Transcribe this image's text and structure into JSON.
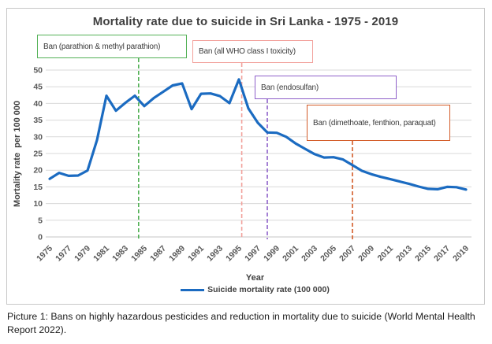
{
  "page": {
    "caption": "Picture 1: Bans on highly hazardous pesticides and reduction in mortality due to suicide (World Mental Health Report 2022)."
  },
  "colors": {
    "series_blue": "#1b6bc1",
    "ban_green": "#53b156",
    "ban_pink": "#f2a09b",
    "ban_purple": "#8e60c9",
    "ban_orange": "#d35b28",
    "grid": "#d9d9d9",
    "axis_text": "#595959",
    "title_text": "#3f3f3f"
  },
  "chart_data": {
    "type": "line",
    "title": "Mortality rate due to suicide in Sri Lanka - 1975 - 2019",
    "xlabel": "Year",
    "ylabel": "Mortality rate  per 100 000",
    "x": [
      1975,
      1976,
      1977,
      1978,
      1979,
      1980,
      1981,
      1982,
      1983,
      1984,
      1985,
      1986,
      1987,
      1988,
      1989,
      1990,
      1991,
      1992,
      1993,
      1994,
      1995,
      1996,
      1997,
      1998,
      1999,
      2000,
      2001,
      2002,
      2003,
      2004,
      2005,
      2006,
      2007,
      2008,
      2009,
      2010,
      2011,
      2012,
      2013,
      2014,
      2015,
      2016,
      2017,
      2018,
      2019
    ],
    "series": [
      {
        "name": "Suicide mortality rate (100 000)",
        "color": "#1b6bc1",
        "values": [
          17.4,
          19.2,
          18.3,
          18.4,
          19.9,
          29.0,
          42.3,
          37.8,
          40.2,
          42.3,
          39.2,
          41.6,
          43.5,
          45.4,
          46.0,
          38.3,
          42.9,
          43.0,
          42.2,
          40.1,
          47.2,
          38.5,
          34.2,
          31.3,
          31.2,
          30.0,
          28.0,
          26.4,
          24.8,
          23.8,
          23.9,
          23.2,
          21.5,
          19.8,
          18.8,
          18.0,
          17.3,
          16.6,
          15.9,
          15.1,
          14.4,
          14.3,
          15.0,
          14.9,
          14.2
        ]
      }
    ],
    "ylim": [
      0,
      50
    ],
    "yticks": [
      0,
      5,
      10,
      15,
      20,
      25,
      30,
      35,
      40,
      45,
      50
    ],
    "xtick_labels": [
      1975,
      1977,
      1979,
      1981,
      1983,
      1985,
      1987,
      1989,
      1991,
      1993,
      1995,
      1997,
      1999,
      2001,
      2003,
      2005,
      2007,
      2009,
      2011,
      2013,
      2015,
      2017,
      2019
    ],
    "grid": true,
    "legend_position": "bottom",
    "annotations": [
      {
        "label": "Ban (parathion & methyl parathion)",
        "year": 1984.4,
        "color": "#53b156",
        "style": "dashed"
      },
      {
        "label": "Ban (all WHO class I toxicity)",
        "year": 1995.3,
        "color": "#f2a09b",
        "style": "dashed"
      },
      {
        "label": "Ban (endosulfan)",
        "year": 1998.0,
        "color": "#8e60c9",
        "style": "dashed"
      },
      {
        "label": "Ban (dimethoate, fenthion, paraquat)",
        "year": 2007.0,
        "color": "#d35b28",
        "style": "dashed"
      }
    ]
  }
}
